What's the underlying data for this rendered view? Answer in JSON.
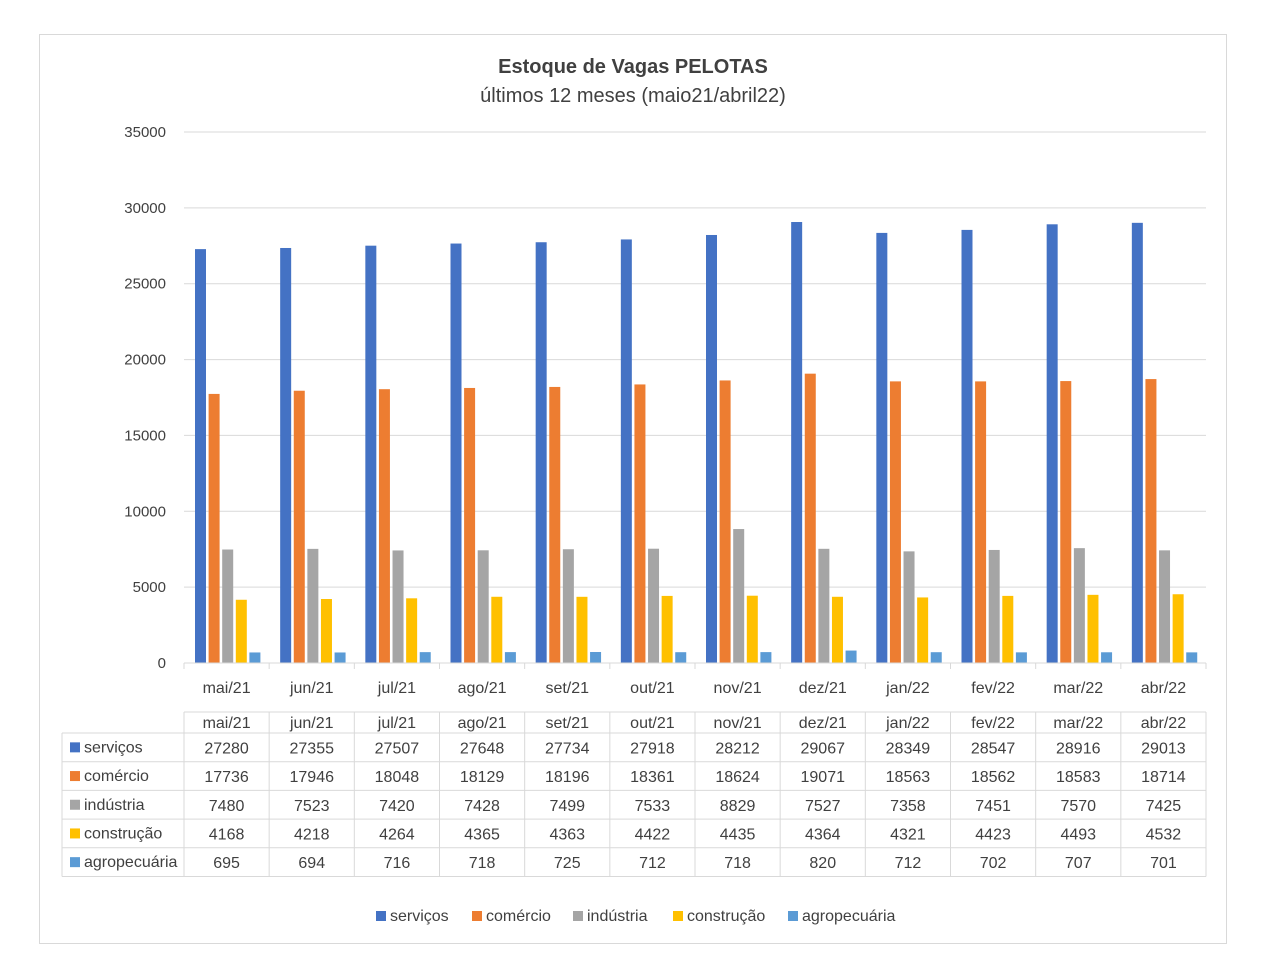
{
  "chart_data": {
    "type": "bar",
    "title": "Estoque de Vagas PELOTAS",
    "subtitle": "últimos 12 meses (maio21/abril22)",
    "xlabel": "",
    "ylabel": "",
    "ylim": [
      0,
      35000
    ],
    "yticks": [
      0,
      5000,
      10000,
      15000,
      20000,
      25000,
      30000,
      35000
    ],
    "grid": true,
    "legend": "bottom",
    "data_table": true,
    "categories": [
      "mai/21",
      "jun/21",
      "jul/21",
      "ago/21",
      "set/21",
      "out/21",
      "nov/21",
      "dez/21",
      "jan/22",
      "fev/22",
      "mar/22",
      "abr/22"
    ],
    "series": [
      {
        "name": "serviços",
        "color": "#4472c4",
        "values": [
          27280,
          27355,
          27507,
          27648,
          27734,
          27918,
          28212,
          29067,
          28349,
          28547,
          28916,
          29013
        ]
      },
      {
        "name": "comércio",
        "color": "#ed7d31",
        "values": [
          17736,
          17946,
          18048,
          18129,
          18196,
          18361,
          18624,
          19071,
          18563,
          18562,
          18583,
          18714
        ]
      },
      {
        "name": "indústria",
        "color": "#a5a5a5",
        "values": [
          7480,
          7523,
          7420,
          7428,
          7499,
          7533,
          8829,
          7527,
          7358,
          7451,
          7570,
          7425
        ]
      },
      {
        "name": "construção",
        "color": "#ffc000",
        "values": [
          4168,
          4218,
          4264,
          4365,
          4363,
          4422,
          4435,
          4364,
          4321,
          4423,
          4493,
          4532
        ]
      },
      {
        "name": "agropecuária",
        "color": "#5b9bd5",
        "values": [
          695,
          694,
          716,
          718,
          725,
          712,
          718,
          820,
          712,
          702,
          707,
          701
        ]
      }
    ]
  }
}
